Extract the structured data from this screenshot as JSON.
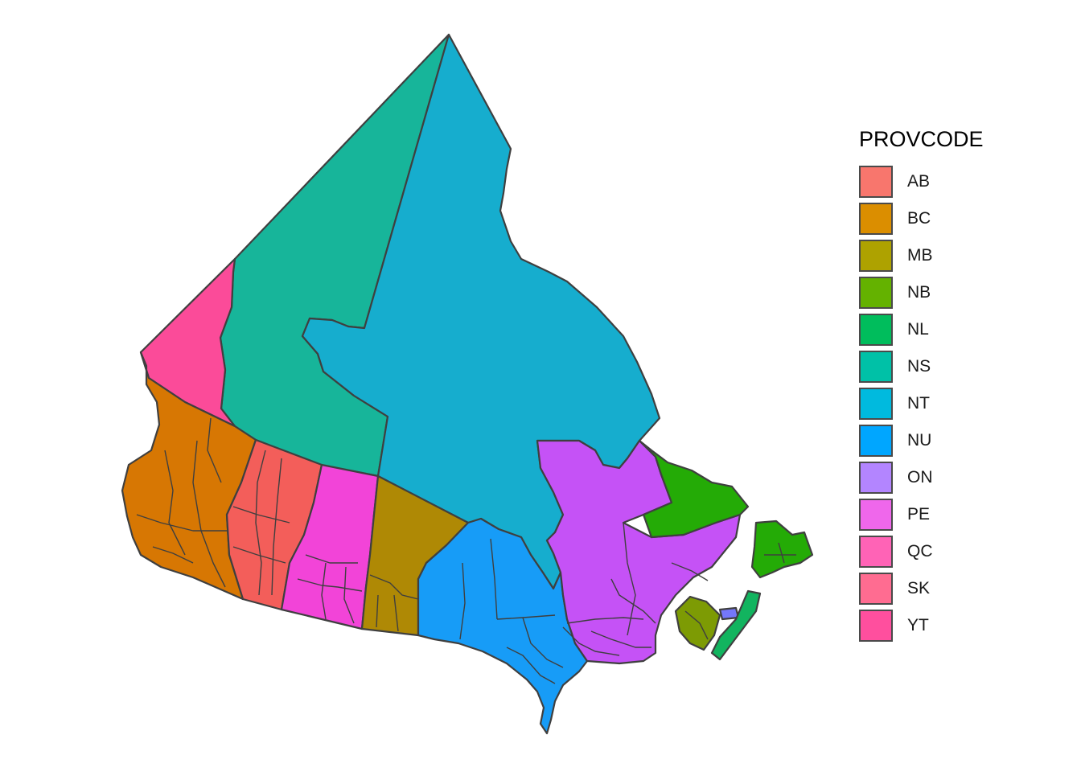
{
  "legend": {
    "title": "PROVCODE",
    "items": [
      {
        "code": "AB",
        "color": "#F8766D"
      },
      {
        "code": "BC",
        "color": "#DB8E00"
      },
      {
        "code": "MB",
        "color": "#AEA200"
      },
      {
        "code": "NB",
        "color": "#64B200"
      },
      {
        "code": "NL",
        "color": "#00BD5C"
      },
      {
        "code": "NS",
        "color": "#00C1A7"
      },
      {
        "code": "NT",
        "color": "#00BADE"
      },
      {
        "code": "NU",
        "color": "#00A6FF"
      },
      {
        "code": "ON",
        "color": "#B385FF"
      },
      {
        "code": "PE",
        "color": "#EF67EB"
      },
      {
        "code": "QC",
        "color": "#FF63B6"
      },
      {
        "code": "SK",
        "color": "#FF6C91"
      },
      {
        "code": "YT",
        "color": "#FF4F9E"
      }
    ]
  },
  "map_fill": {
    "AB": "#F35E5A",
    "BC": "#D77703",
    "MB": "#AF8905",
    "NB": "#7D9B04",
    "NL": "#24AB06",
    "NS": "#12B45F",
    "NT": "#17B59A",
    "NU": "#16ADCE",
    "ON": "#179CF7",
    "PE": "#7477FB",
    "QC": "#C552F6",
    "SK": "#F244D8",
    "YT": "#FB4B99"
  }
}
